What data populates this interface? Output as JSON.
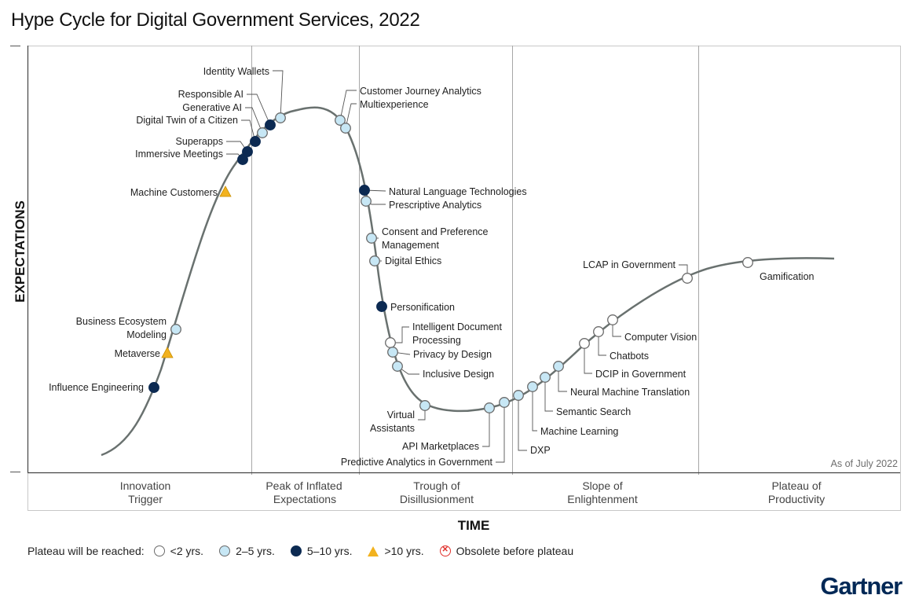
{
  "title": "Hype Cycle for Digital Government Services, 2022",
  "y_axis_label": "EXPECTATIONS",
  "x_axis_label": "TIME",
  "as_of": "As of July 2022",
  "brand": "Gartner",
  "phases": [
    {
      "line1": "Innovation",
      "line2": "Trigger"
    },
    {
      "line1": "Peak of Inflated",
      "line2": "Expectations"
    },
    {
      "line1": "Trough of",
      "line2": "Disillusionment"
    },
    {
      "line1": "Slope of",
      "line2": "Enlightenment"
    },
    {
      "line1": "Plateau of",
      "line2": "Productivity"
    }
  ],
  "legend": {
    "title": "Plateau will be reached:",
    "items": [
      {
        "key": "lt2",
        "label": "<2 yrs."
      },
      {
        "key": "2to5",
        "label": "2–5 yrs."
      },
      {
        "key": "5to10",
        "label": "5–10 yrs."
      },
      {
        "key": "gt10",
        "label": ">10 yrs."
      },
      {
        "key": "obsolete",
        "label": "Obsolete before plateau"
      }
    ]
  },
  "colors": {
    "lt2": "#ffffff",
    "2to5": "#c7e7f5",
    "5to10": "#0c2a52",
    "gt10": "#f2b21f",
    "obsolete": "#e0302b",
    "curve": "#69716f",
    "grid": "#a7a7a7"
  },
  "chart_data": {
    "type": "hype-cycle",
    "technologies": [
      {
        "name": "Influence Engineering",
        "category": "5to10",
        "phase": "Innovation Trigger"
      },
      {
        "name": "Metaverse",
        "category": "gt10",
        "phase": "Innovation Trigger"
      },
      {
        "name": "Business Ecosystem Modeling",
        "category": "2to5",
        "phase": "Innovation Trigger"
      },
      {
        "name": "Machine Customers",
        "category": "gt10",
        "phase": "Innovation Trigger"
      },
      {
        "name": "Immersive Meetings",
        "category": "5to10",
        "phase": "Innovation Trigger"
      },
      {
        "name": "Superapps",
        "category": "5to10",
        "phase": "Peak of Inflated Expectations"
      },
      {
        "name": "Digital Twin of a Citizen",
        "category": "5to10",
        "phase": "Peak of Inflated Expectations"
      },
      {
        "name": "Generative AI",
        "category": "2to5",
        "phase": "Peak of Inflated Expectations"
      },
      {
        "name": "Responsible AI",
        "category": "5to10",
        "phase": "Peak of Inflated Expectations"
      },
      {
        "name": "Identity Wallets",
        "category": "2to5",
        "phase": "Peak of Inflated Expectations"
      },
      {
        "name": "Customer Journey Analytics",
        "category": "2to5",
        "phase": "Peak of Inflated Expectations"
      },
      {
        "name": "Multiexperience",
        "category": "2to5",
        "phase": "Peak of Inflated Expectations"
      },
      {
        "name": "Natural Language Technologies",
        "category": "5to10",
        "phase": "Trough of Disillusionment"
      },
      {
        "name": "Prescriptive Analytics",
        "category": "2to5",
        "phase": "Trough of Disillusionment"
      },
      {
        "name": "Consent and Preference Management",
        "category": "2to5",
        "phase": "Trough of Disillusionment"
      },
      {
        "name": "Digital Ethics",
        "category": "2to5",
        "phase": "Trough of Disillusionment"
      },
      {
        "name": "Personification",
        "category": "5to10",
        "phase": "Trough of Disillusionment"
      },
      {
        "name": "Intelligent Document Processing",
        "category": "lt2",
        "phase": "Trough of Disillusionment"
      },
      {
        "name": "Privacy by Design",
        "category": "2to5",
        "phase": "Trough of Disillusionment"
      },
      {
        "name": "Inclusive Design",
        "category": "2to5",
        "phase": "Trough of Disillusionment"
      },
      {
        "name": "Virtual Assistants",
        "category": "2to5",
        "phase": "Trough of Disillusionment"
      },
      {
        "name": "API Marketplaces",
        "category": "2to5",
        "phase": "Trough of Disillusionment"
      },
      {
        "name": "Predictive Analytics in Government",
        "category": "2to5",
        "phase": "Trough of Disillusionment"
      },
      {
        "name": "DXP",
        "category": "2to5",
        "phase": "Slope of Enlightenment"
      },
      {
        "name": "Machine Learning",
        "category": "2to5",
        "phase": "Slope of Enlightenment"
      },
      {
        "name": "Semantic Search",
        "category": "2to5",
        "phase": "Slope of Enlightenment"
      },
      {
        "name": "Neural Machine Translation",
        "category": "2to5",
        "phase": "Slope of Enlightenment"
      },
      {
        "name": "DCIP in Government",
        "category": "lt2",
        "phase": "Slope of Enlightenment"
      },
      {
        "name": "Chatbots",
        "category": "lt2",
        "phase": "Slope of Enlightenment"
      },
      {
        "name": "Computer Vision",
        "category": "lt2",
        "phase": "Slope of Enlightenment"
      },
      {
        "name": "LCAP in Government",
        "category": "lt2",
        "phase": "Slope of Enlightenment"
      },
      {
        "name": "Gamification",
        "category": "lt2",
        "phase": "Plateau of Productivity"
      }
    ]
  }
}
